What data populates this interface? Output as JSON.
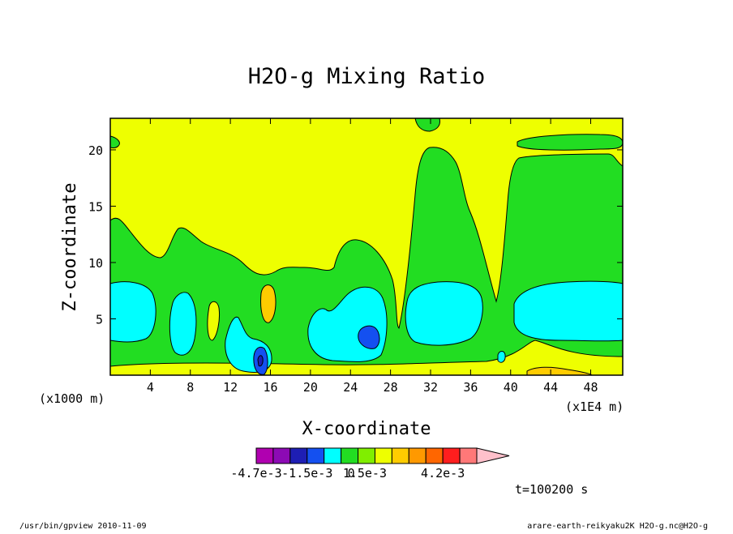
{
  "chart_data": {
    "type": "heatmap",
    "title": "H2O-g Mixing Ratio",
    "xlabel": "X-coordinate",
    "ylabel": "Z-coordinate",
    "x_unit": "(x1E4 m)",
    "y_unit": "(x1000 m)",
    "xlim": [
      0,
      51.2
    ],
    "ylim": [
      0,
      22.8
    ],
    "x_ticks": [
      4,
      8,
      12,
      16,
      20,
      24,
      28,
      32,
      36,
      40,
      44,
      48
    ],
    "y_ticks": [
      5,
      10,
      15,
      20
    ],
    "levels_min": -0.0047,
    "levels_max": 0.005,
    "colorbar": {
      "colors": [
        "#b000b0",
        "#8c0ab4",
        "#1e1eb4",
        "#1450f0",
        "#00ffff",
        "#22dd22",
        "#80ee00",
        "#eeff00",
        "#ffcc00",
        "#ff9900",
        "#ff6600",
        "#ff1e1e",
        "#ff7878",
        "#ffc0cb"
      ],
      "labels": [
        "-4.7e-3",
        "-1.5e-3",
        "0",
        "1.5e-3",
        "4.2e-3"
      ]
    },
    "time_label": "t=100200 s",
    "footer_left": "/usr/bin/gpview  2010-11-09",
    "footer_right": "arare-earth-reikyaku2K_H2O-g.nc@H2O-g"
  },
  "colors": {
    "yellow": "#eeff00",
    "green": "#22dd22",
    "cyan": "#00ffff",
    "blue": "#1450f0",
    "navy": "#1e1eb4",
    "orange": "#ffcc00",
    "deep_orange": "#ff9900"
  }
}
